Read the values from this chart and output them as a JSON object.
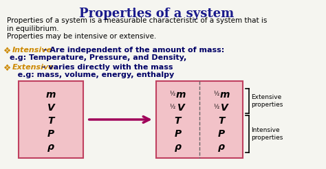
{
  "title": "Properties of a system",
  "title_color": "#1a1a8c",
  "title_fontsize": 13,
  "body_text_1": "Properties of a system is a measurable characteristic of a system that is\nin equilibrium.\nProperties may be intensive or extensive.",
  "body_color": "#000000",
  "body_fontsize": 7.5,
  "bullet_color": "#cc8800",
  "intensive_label": "Intensive",
  "intensive_rest": " – Are independent of the amount of mass:",
  "intensive_example": "e.g: Temperature, Pressure, and Density,",
  "extensive_label": "Extensive",
  "extensive_rest": " – varies directly with the mass",
  "extensive_example": "   e.g: mass, volume, energy, enthalpy",
  "box_fill": "#f2c2c8",
  "box_edge": "#c04060",
  "arrow_color": "#a0005a",
  "left_box_vars": [
    "m",
    "V",
    "T",
    "P",
    "ρ"
  ],
  "right_box_vars_left": [
    "½",
    "m",
    "½",
    "V",
    "T",
    "P",
    "ρ"
  ],
  "right_box_vars_right": [
    "½",
    "m",
    "½",
    "V",
    "T",
    "P",
    "ρ"
  ],
  "bracket_color": "#000000",
  "extensive_prop_label": "Extensive\nproperties",
  "intensive_prop_label": "Intensive\nproperties",
  "bg_color": "#f5f5f0"
}
